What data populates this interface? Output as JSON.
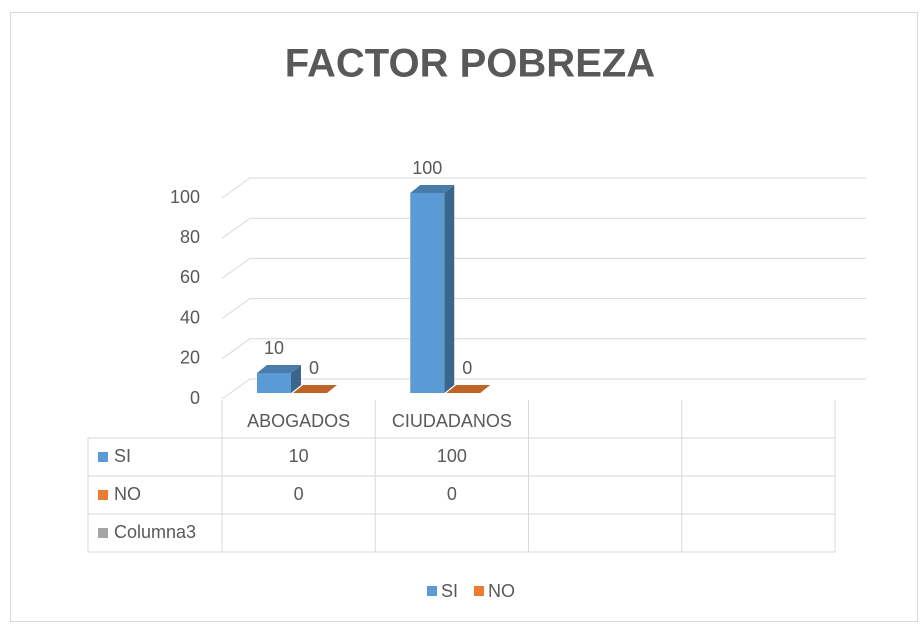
{
  "chart_data": {
    "type": "bar3d",
    "title": "FACTOR POBREZA",
    "categories": [
      "ABOGADOS",
      "CIUDADANOS",
      null,
      null
    ],
    "series": [
      {
        "name": "SI",
        "color": "#5b9bd5",
        "values": [
          10,
          100,
          null,
          null
        ]
      },
      {
        "name": "NO",
        "color": "#ed7d31",
        "values": [
          0,
          0,
          null,
          null
        ]
      },
      {
        "name": "Columna3",
        "color": "#a5a5a5",
        "values": [
          null,
          null,
          null,
          null
        ]
      }
    ],
    "ylim": [
      0,
      100
    ],
    "yticks": [
      0,
      20,
      40,
      60,
      80,
      100
    ],
    "grid": true,
    "legend": "bottom",
    "data_table": true
  }
}
